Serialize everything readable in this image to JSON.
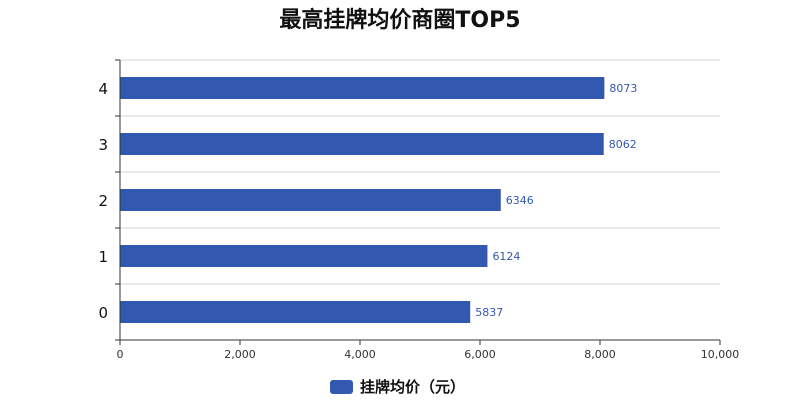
{
  "chart_data": {
    "type": "bar",
    "orientation": "horizontal",
    "title": "最高挂牌均价商圈TOP5",
    "categories": [
      "0",
      "1",
      "2",
      "3",
      "4"
    ],
    "series": [
      {
        "name": "挂牌均价（元）",
        "color": "#3358b0",
        "values": [
          5837,
          6124,
          6346,
          8062,
          8073
        ]
      }
    ],
    "xlim": [
      0,
      10000
    ],
    "x_ticks": [
      0,
      2000,
      4000,
      6000,
      8000,
      10000
    ],
    "x_tick_labels": [
      "0",
      "2,000",
      "4,000",
      "6,000",
      "8,000",
      "10,000"
    ],
    "xlabel": "",
    "ylabel": "",
    "grid": "horizontal",
    "legend_position": "bottom-center",
    "data_labels": true,
    "label_color": "#3358b0"
  }
}
